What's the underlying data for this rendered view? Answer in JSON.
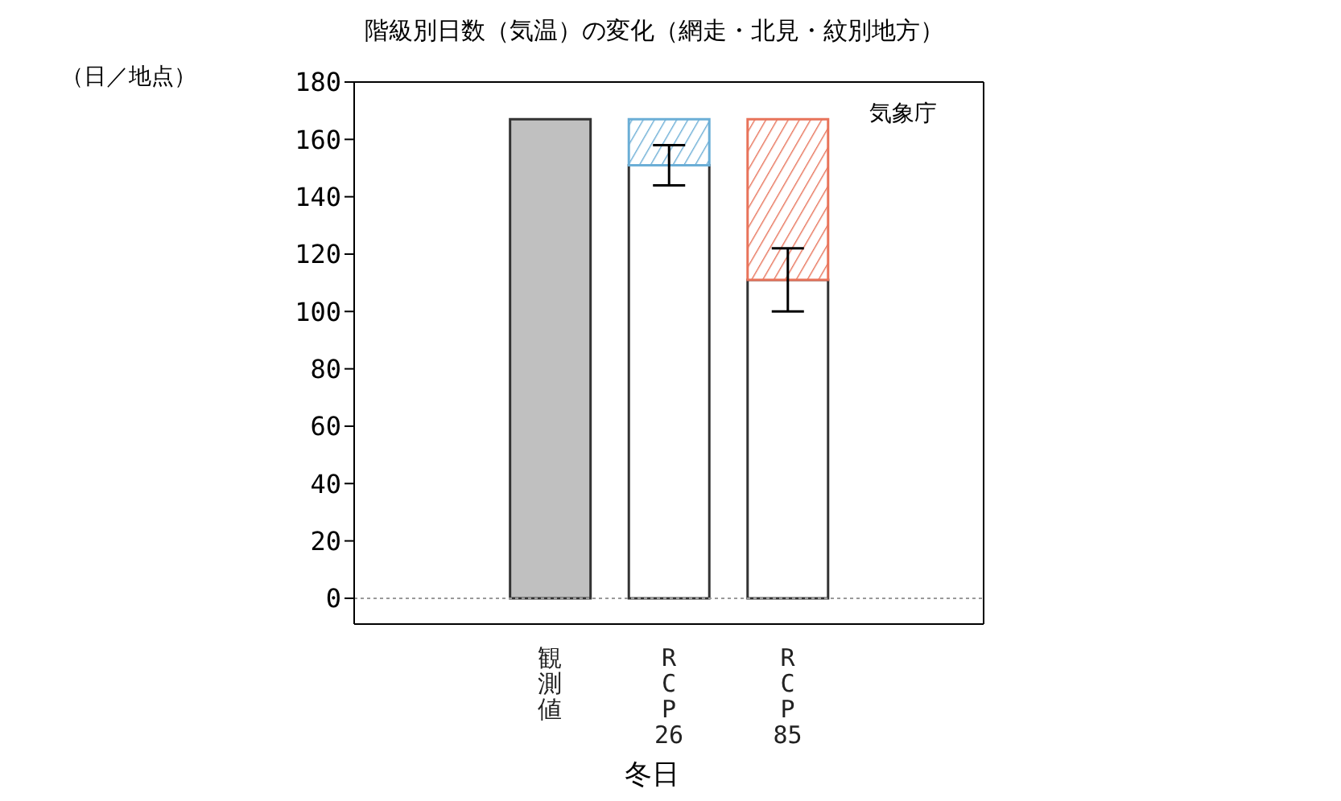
{
  "chart_data": {
    "type": "bar",
    "title": "階級別日数（気温）の変化（網走・北見・紋別地方）",
    "ylabel": "（日／地点）",
    "xlabel": "冬日",
    "categories": [
      "観測値",
      "RCP26",
      "RCP85"
    ],
    "stacked": true,
    "series": [
      {
        "color": "#c0c0c0",
        "values": [
          167,
          null,
          null
        ]
      },
      {
        "color": "#ffffff",
        "values": [
          null,
          151,
          111
        ],
        "errors": [
          null,
          [
            144,
            158
          ],
          [
            100,
            122
          ]
        ]
      },
      {
        "colors": [
          null,
          "#6baed6",
          "#e8735a"
        ],
        "values": [
          null,
          16,
          56
        ]
      }
    ],
    "ylim": [
      -9,
      180
    ],
    "yticks": [
      0,
      20,
      40,
      60,
      80,
      100,
      120,
      140,
      160,
      180
    ],
    "ref_lines": [
      {
        "axis": "y",
        "value": 0,
        "color": "#999999",
        "line_style": "dotted"
      }
    ],
    "annotations": [
      "気象庁"
    ],
    "grid": false,
    "legend": false
  }
}
